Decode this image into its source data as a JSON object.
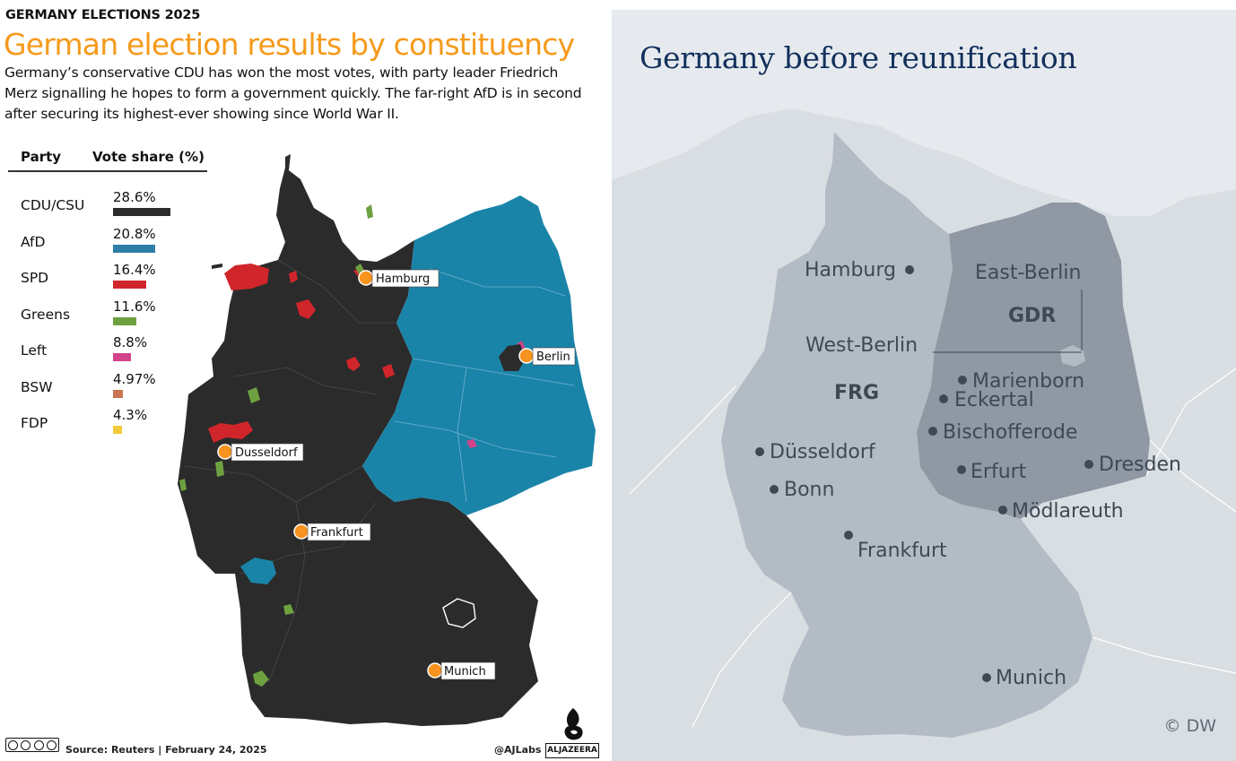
{
  "left_panel": {
    "kicker": "GERMANY ELECTIONS 2025",
    "headline": "German election results by constituency",
    "deck": "Germany’s conservative CDU has won the most votes, with party leader Friedrich Merz signalling he hopes to form a government quickly. The far-right AfD is in second after securing its highest-ever showing since World War II.",
    "legend": {
      "col_party": "Party",
      "col_share": "Vote share (%)",
      "rows": [
        {
          "party": "CDU/CSU",
          "share_label": "28.6%",
          "share": 28.6,
          "color": "#2b2b2b"
        },
        {
          "party": "AfD",
          "share_label": "20.8%",
          "share": 20.8,
          "color": "#2f7ea6"
        },
        {
          "party": "SPD",
          "share_label": "16.4%",
          "share": 16.4,
          "color": "#d0262b"
        },
        {
          "party": "Greens",
          "share_label": "11.6%",
          "share": 11.6,
          "color": "#6da140"
        },
        {
          "party": "Left",
          "share_label": "8.8%",
          "share": 8.8,
          "color": "#d2438a"
        },
        {
          "party": "BSW",
          "share_label": "4.97%",
          "share": 4.97,
          "color": "#c97352"
        },
        {
          "party": "FDP",
          "share_label": "4.3%",
          "share": 4.3,
          "color": "#f2cb3c"
        }
      ]
    },
    "map": {
      "colors": {
        "cdu": "#2b2b2b",
        "afd": "#1a84a8",
        "spd": "#d0262b",
        "greens": "#6da140",
        "left": "#d2438a",
        "city_marker": "#f7931e"
      },
      "cities": [
        "Hamburg",
        "Berlin",
        "Dusseldorf",
        "Frankfurt",
        "Munich"
      ]
    },
    "footer": {
      "source": "Source: Reuters  |  February 24, 2025",
      "handle": "@AJLabs",
      "logo_word": "ALJAZEERA",
      "license_icon": "creative-commons-by-nc-sa-icon"
    }
  },
  "right_panel": {
    "title": "Germany before reunification",
    "states": {
      "west": "FRG",
      "east": "GDR"
    },
    "cities": {
      "hamburg": "Hamburg",
      "east_berlin": "East-Berlin",
      "west_berlin": "West-Berlin",
      "marienborn": "Marienborn",
      "eckertal": "Eckertal",
      "bischofferode": "Bischofferode",
      "dusseldorf": "Düsseldorf",
      "bonn": "Bonn",
      "erfurt": "Erfurt",
      "dresden": "Dresden",
      "modlareuth": "Mödlareuth",
      "frankfurt": "Frankfurt",
      "munich": "Munich"
    },
    "credit": "© DW",
    "colors": {
      "background": "#d9dee3",
      "frg": "#b3bcc5",
      "gdr": "#8f98a3",
      "text": "#3e4954",
      "title": "#12305c"
    }
  }
}
